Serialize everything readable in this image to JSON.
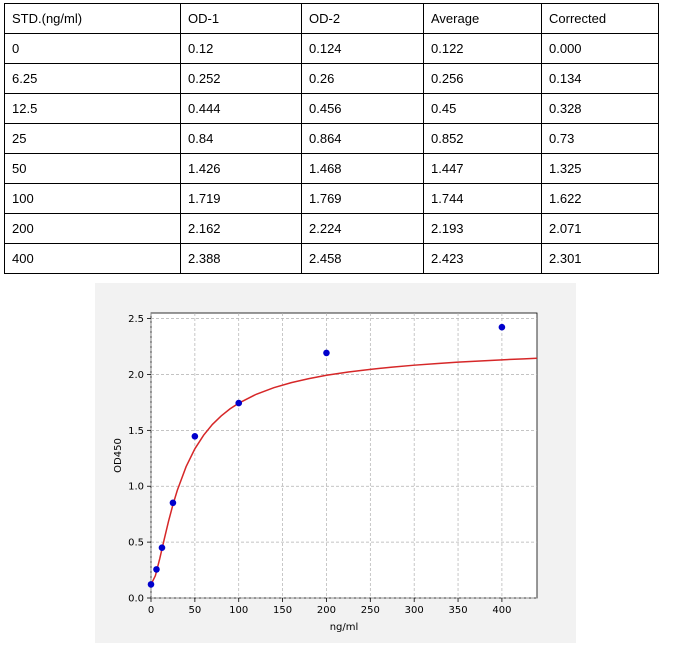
{
  "table": {
    "headers": [
      "STD.(ng/ml)",
      "OD-1",
      "OD-2",
      "Average",
      "Corrected"
    ],
    "rows": [
      [
        "0",
        "0.12",
        "0.124",
        "0.122",
        "0.000"
      ],
      [
        "6.25",
        "0.252",
        "0.26",
        "0.256",
        "0.134"
      ],
      [
        "12.5",
        "0.444",
        "0.456",
        "0.45",
        "0.328"
      ],
      [
        "25",
        "0.84",
        "0.864",
        "0.852",
        "0.73"
      ],
      [
        "50",
        "1.426",
        "1.468",
        "1.447",
        "1.325"
      ],
      [
        "100",
        "1.719",
        "1.769",
        "1.744",
        "1.622"
      ],
      [
        "200",
        "2.162",
        "2.224",
        "2.193",
        "2.071"
      ],
      [
        "400",
        "2.388",
        "2.458",
        "2.423",
        "2.301"
      ]
    ]
  },
  "chart_data": {
    "type": "scatter",
    "xlabel": "ng/ml",
    "ylabel": "OD450",
    "xlim": [
      0,
      440
    ],
    "ylim": [
      0,
      2.55
    ],
    "xticks": [
      0,
      50,
      100,
      150,
      200,
      250,
      300,
      350,
      400
    ],
    "yticks": [
      0.0,
      0.5,
      1.0,
      1.5,
      2.0,
      2.5
    ],
    "grid": true,
    "points": {
      "x": [
        0,
        6.25,
        12.5,
        25,
        50,
        100,
        200,
        400
      ],
      "y": [
        0.122,
        0.256,
        0.45,
        0.852,
        1.447,
        1.744,
        2.193,
        2.423
      ],
      "color": "#0000cc"
    },
    "fit_curve": {
      "color": "#d62728",
      "x": [
        0,
        5,
        10,
        15,
        20,
        25,
        30,
        40,
        50,
        60,
        70,
        80,
        90,
        100,
        120,
        140,
        160,
        180,
        200,
        225,
        250,
        275,
        300,
        325,
        350,
        375,
        400,
        425,
        440
      ],
      "y": [
        0.12,
        0.2,
        0.353,
        0.523,
        0.687,
        0.835,
        0.964,
        1.175,
        1.335,
        1.457,
        1.553,
        1.629,
        1.692,
        1.743,
        1.823,
        1.882,
        1.927,
        1.963,
        1.993,
        2.022,
        2.046,
        2.066,
        2.083,
        2.097,
        2.11,
        2.121,
        2.131,
        2.14,
        2.145
      ]
    }
  }
}
